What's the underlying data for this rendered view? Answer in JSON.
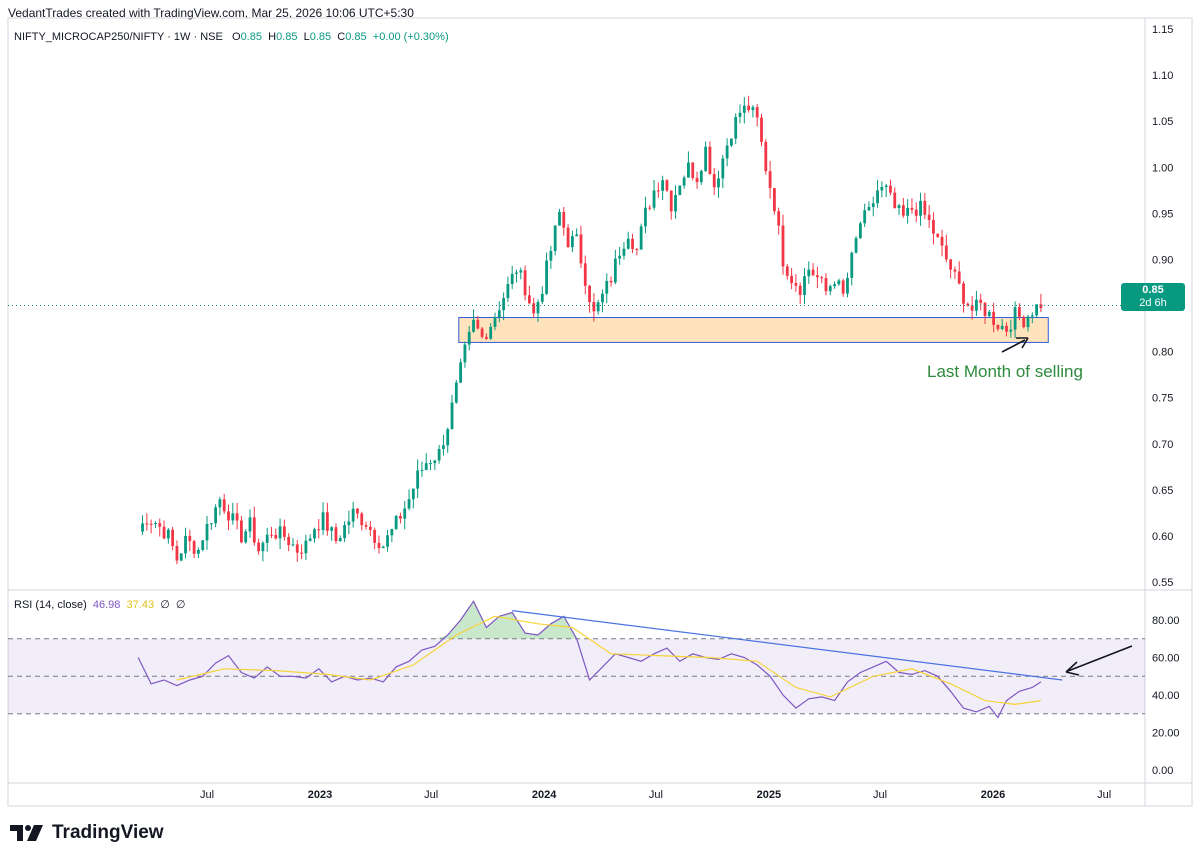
{
  "header": {
    "attribution": "VedantTrades created with TradingView.com, Mar 25, 2026 10:06 UTC+5:30"
  },
  "legend": {
    "symbol": "NIFTY_MICROCAP250/NIFTY · 1W · NSE",
    "o_label": "O",
    "o_value": "0.85",
    "h_label": "H",
    "h_value": "0.85",
    "l_label": "L",
    "l_value": "0.85",
    "c_label": "C",
    "c_value": "0.85",
    "change": "+0.00 (+0.30%)"
  },
  "price_badge": {
    "price": "0.85",
    "countdown": "2d 6h"
  },
  "annotation": {
    "text": "Last Month of selling"
  },
  "rsi_legend": {
    "label": "RSI (14, close)",
    "rsi": "46.98",
    "ma": "37.43",
    "extra1": "∅",
    "extra2": "∅"
  },
  "brand": {
    "name": "TradingView",
    "logo_icon": "tradingview-logo-icon"
  },
  "colors": {
    "up": "#089981",
    "down": "#f23645",
    "rsi": "#7e57c2",
    "rsi_ma": "#f5d33a",
    "trend": "#4a73e0",
    "zone_fill": "#ffe3bd",
    "zone_border": "#2d5ed6",
    "annotation": "#2e8b3d",
    "last_price": "#089981"
  },
  "chart_data": [
    {
      "type": "candlestick",
      "title": "",
      "ylim": [
        0.54,
        1.16
      ],
      "y_ticks": [
        "1.15",
        "1.10",
        "1.05",
        "1.00",
        "0.95",
        "0.90",
        "0.85",
        "0.80",
        "0.75",
        "0.70",
        "0.65",
        "0.60",
        "0.55"
      ],
      "x_ticks": [
        "Jul",
        "2023",
        "Jul",
        "2024",
        "Jul",
        "2025",
        "Jul",
        "2026",
        "Jul"
      ],
      "x_tick_dates": [
        "2022-07-01",
        "2023-01-01",
        "2023-07-01",
        "2024-01-01",
        "2024-07-01",
        "2025-01-01",
        "2025-07-01",
        "2026-01-01",
        "2026-07-01"
      ],
      "xlim": [
        "2022-01-01",
        "2026-08-20"
      ],
      "last_price": 0.85,
      "support_zone": {
        "from": "2023-08-15",
        "to": "2026-04-01",
        "low": 0.81,
        "high": 0.837
      },
      "path": [
        [
          "2022-03-11",
          0.605
        ],
        [
          "2022-03-25",
          0.62
        ],
        [
          "2022-04-08",
          0.615
        ],
        [
          "2022-04-29",
          0.6
        ],
        [
          "2022-05-13",
          0.575
        ],
        [
          "2022-05-27",
          0.595
        ],
        [
          "2022-06-17",
          0.585
        ],
        [
          "2022-06-24",
          0.6
        ],
        [
          "2022-07-15",
          0.63
        ],
        [
          "2022-07-22",
          0.64
        ],
        [
          "2022-08-05",
          0.625
        ],
        [
          "2022-08-26",
          0.6
        ],
        [
          "2022-09-09",
          0.612
        ],
        [
          "2022-09-23",
          0.585
        ],
        [
          "2022-10-14",
          0.605
        ],
        [
          "2022-11-04",
          0.6
        ],
        [
          "2022-11-25",
          0.585
        ],
        [
          "2022-12-09",
          0.59
        ],
        [
          "2022-12-23",
          0.61
        ],
        [
          "2023-01-06",
          0.618
        ],
        [
          "2023-01-27",
          0.595
        ],
        [
          "2023-02-10",
          0.61
        ],
        [
          "2023-02-24",
          0.625
        ],
        [
          "2023-03-17",
          0.615
        ],
        [
          "2023-03-31",
          0.6
        ],
        [
          "2023-04-14",
          0.59
        ],
        [
          "2023-04-28",
          0.605
        ],
        [
          "2023-05-12",
          0.622
        ],
        [
          "2023-05-26",
          0.64
        ],
        [
          "2023-06-09",
          0.665
        ],
        [
          "2023-06-23",
          0.68
        ],
        [
          "2023-07-14",
          0.69
        ],
        [
          "2023-07-28",
          0.72
        ],
        [
          "2023-08-11",
          0.76
        ],
        [
          "2023-08-25",
          0.8
        ],
        [
          "2023-09-08",
          0.83
        ],
        [
          "2023-09-22",
          0.815
        ],
        [
          "2023-10-06",
          0.83
        ],
        [
          "2023-10-20",
          0.85
        ],
        [
          "2023-11-03",
          0.87
        ],
        [
          "2023-11-17",
          0.89
        ],
        [
          "2023-12-01",
          0.87
        ],
        [
          "2023-12-15",
          0.84
        ],
        [
          "2023-12-29",
          0.87
        ],
        [
          "2024-01-12",
          0.91
        ],
        [
          "2024-01-26",
          0.95
        ],
        [
          "2024-02-09",
          0.92
        ],
        [
          "2024-02-23",
          0.92
        ],
        [
          "2024-03-08",
          0.88
        ],
        [
          "2024-03-22",
          0.84
        ],
        [
          "2024-04-05",
          0.86
        ],
        [
          "2024-04-19",
          0.88
        ],
        [
          "2024-05-03",
          0.91
        ],
        [
          "2024-05-17",
          0.93
        ],
        [
          "2024-05-31",
          0.91
        ],
        [
          "2024-06-14",
          0.95
        ],
        [
          "2024-06-28",
          0.975
        ],
        [
          "2024-07-12",
          0.99
        ],
        [
          "2024-07-26",
          0.96
        ],
        [
          "2024-08-09",
          0.985
        ],
        [
          "2024-08-23",
          1.0
        ],
        [
          "2024-09-06",
          0.99
        ],
        [
          "2024-09-20",
          1.02
        ],
        [
          "2024-10-04",
          0.98
        ],
        [
          "2024-10-18",
          1.01
        ],
        [
          "2024-11-01",
          1.04
        ],
        [
          "2024-11-15",
          1.06
        ],
        [
          "2024-11-29",
          1.065
        ],
        [
          "2024-12-13",
          1.05
        ],
        [
          "2024-12-27",
          1.0
        ],
        [
          "2025-01-10",
          0.96
        ],
        [
          "2025-01-24",
          0.9
        ],
        [
          "2025-02-07",
          0.88
        ],
        [
          "2025-02-21",
          0.87
        ],
        [
          "2025-03-07",
          0.89
        ],
        [
          "2025-03-21",
          0.88
        ],
        [
          "2025-04-04",
          0.865
        ],
        [
          "2025-04-18",
          0.88
        ],
        [
          "2025-05-02",
          0.86
        ],
        [
          "2025-05-16",
          0.9
        ],
        [
          "2025-05-30",
          0.94
        ],
        [
          "2025-06-13",
          0.95
        ],
        [
          "2025-06-27",
          0.975
        ],
        [
          "2025-07-11",
          0.975
        ],
        [
          "2025-07-25",
          0.955
        ],
        [
          "2025-08-08",
          0.945
        ],
        [
          "2025-08-22",
          0.955
        ],
        [
          "2025-09-05",
          0.955
        ],
        [
          "2025-09-19",
          0.94
        ],
        [
          "2025-10-03",
          0.92
        ],
        [
          "2025-10-17",
          0.9
        ],
        [
          "2025-10-31",
          0.88
        ],
        [
          "2025-11-14",
          0.86
        ],
        [
          "2025-11-28",
          0.845
        ],
        [
          "2025-12-12",
          0.85
        ],
        [
          "2025-12-26",
          0.84
        ],
        [
          "2026-01-09",
          0.83
        ],
        [
          "2026-01-23",
          0.825
        ],
        [
          "2026-02-06",
          0.84
        ],
        [
          "2026-02-20",
          0.835
        ],
        [
          "2026-03-06",
          0.845
        ],
        [
          "2026-03-20",
          0.852
        ]
      ]
    },
    {
      "type": "line",
      "title": "",
      "series": [
        {
          "name": "RSI"
        },
        {
          "name": "MA"
        }
      ],
      "ylim": [
        -3,
        92
      ],
      "y_ticks": [
        "80.00",
        "60.00",
        "40.00",
        "20.00",
        "0.00"
      ],
      "bands": [
        30,
        50,
        70
      ],
      "xlim": [
        "2022-01-01",
        "2026-08-20"
      ],
      "rsi_points": [
        [
          "2022-03-11",
          60
        ],
        [
          "2022-04-01",
          46
        ],
        [
          "2022-04-22",
          48
        ],
        [
          "2022-05-13",
          45
        ],
        [
          "2022-06-03",
          48
        ],
        [
          "2022-06-24",
          50
        ],
        [
          "2022-07-15",
          57
        ],
        [
          "2022-08-05",
          61
        ],
        [
          "2022-08-26",
          52
        ],
        [
          "2022-09-16",
          49
        ],
        [
          "2022-10-07",
          55
        ],
        [
          "2022-10-28",
          50
        ],
        [
          "2022-11-18",
          50
        ],
        [
          "2022-12-09",
          49
        ],
        [
          "2022-12-30",
          54
        ],
        [
          "2023-01-20",
          47
        ],
        [
          "2023-02-10",
          50
        ],
        [
          "2023-03-03",
          48
        ],
        [
          "2023-03-24",
          49
        ],
        [
          "2023-04-14",
          47
        ],
        [
          "2023-05-05",
          55
        ],
        [
          "2023-05-26",
          58
        ],
        [
          "2023-06-16",
          64
        ],
        [
          "2023-07-07",
          66
        ],
        [
          "2023-07-28",
          72
        ],
        [
          "2023-08-18",
          80
        ],
        [
          "2023-09-08",
          90
        ],
        [
          "2023-09-29",
          76
        ],
        [
          "2023-10-20",
          82
        ],
        [
          "2023-11-10",
          84
        ],
        [
          "2023-12-01",
          73
        ],
        [
          "2023-12-22",
          72
        ],
        [
          "2024-01-12",
          78
        ],
        [
          "2024-02-02",
          82
        ],
        [
          "2024-02-23",
          70
        ],
        [
          "2024-03-15",
          48
        ],
        [
          "2024-04-05",
          55
        ],
        [
          "2024-04-26",
          62
        ],
        [
          "2024-05-17",
          60
        ],
        [
          "2024-06-07",
          58
        ],
        [
          "2024-06-28",
          62
        ],
        [
          "2024-07-19",
          65
        ],
        [
          "2024-08-09",
          58
        ],
        [
          "2024-08-30",
          62
        ],
        [
          "2024-09-20",
          60
        ],
        [
          "2024-10-11",
          59
        ],
        [
          "2024-11-01",
          62
        ],
        [
          "2024-11-22",
          60
        ],
        [
          "2024-12-13",
          56
        ],
        [
          "2025-01-03",
          50
        ],
        [
          "2025-01-24",
          40
        ],
        [
          "2025-02-14",
          33
        ],
        [
          "2025-03-07",
          38
        ],
        [
          "2025-03-28",
          39
        ],
        [
          "2025-04-18",
          37
        ],
        [
          "2025-05-09",
          47
        ],
        [
          "2025-05-30",
          52
        ],
        [
          "2025-06-20",
          55
        ],
        [
          "2025-07-11",
          58
        ],
        [
          "2025-08-01",
          52
        ],
        [
          "2025-08-22",
          51
        ],
        [
          "2025-09-12",
          53
        ],
        [
          "2025-10-03",
          50
        ],
        [
          "2025-10-24",
          42
        ],
        [
          "2025-11-14",
          33
        ],
        [
          "2025-12-05",
          31
        ],
        [
          "2025-12-26",
          34
        ],
        [
          "2026-01-09",
          28
        ],
        [
          "2026-01-23",
          37
        ],
        [
          "2026-02-13",
          42
        ],
        [
          "2026-03-06",
          44
        ],
        [
          "2026-03-20",
          47
        ]
      ],
      "ma_points": [
        [
          "2022-05-13",
          48
        ],
        [
          "2022-07-29",
          54
        ],
        [
          "2022-10-21",
          53
        ],
        [
          "2023-01-13",
          51
        ],
        [
          "2023-03-24",
          48
        ],
        [
          "2023-06-02",
          56
        ],
        [
          "2023-08-11",
          72
        ],
        [
          "2023-10-13",
          82
        ],
        [
          "2023-12-22",
          78
        ],
        [
          "2024-02-16",
          76
        ],
        [
          "2024-04-19",
          62
        ],
        [
          "2024-07-05",
          61
        ],
        [
          "2024-09-27",
          60
        ],
        [
          "2024-12-13",
          58
        ],
        [
          "2025-02-14",
          44
        ],
        [
          "2025-04-11",
          39
        ],
        [
          "2025-06-20",
          50
        ],
        [
          "2025-08-22",
          54
        ],
        [
          "2025-10-24",
          46
        ],
        [
          "2025-12-19",
          37
        ],
        [
          "2026-02-06",
          35
        ],
        [
          "2026-03-20",
          37
        ]
      ],
      "trendline": [
        [
          "2023-11-10",
          85
        ],
        [
          "2026-04-24",
          48
        ]
      ]
    }
  ]
}
